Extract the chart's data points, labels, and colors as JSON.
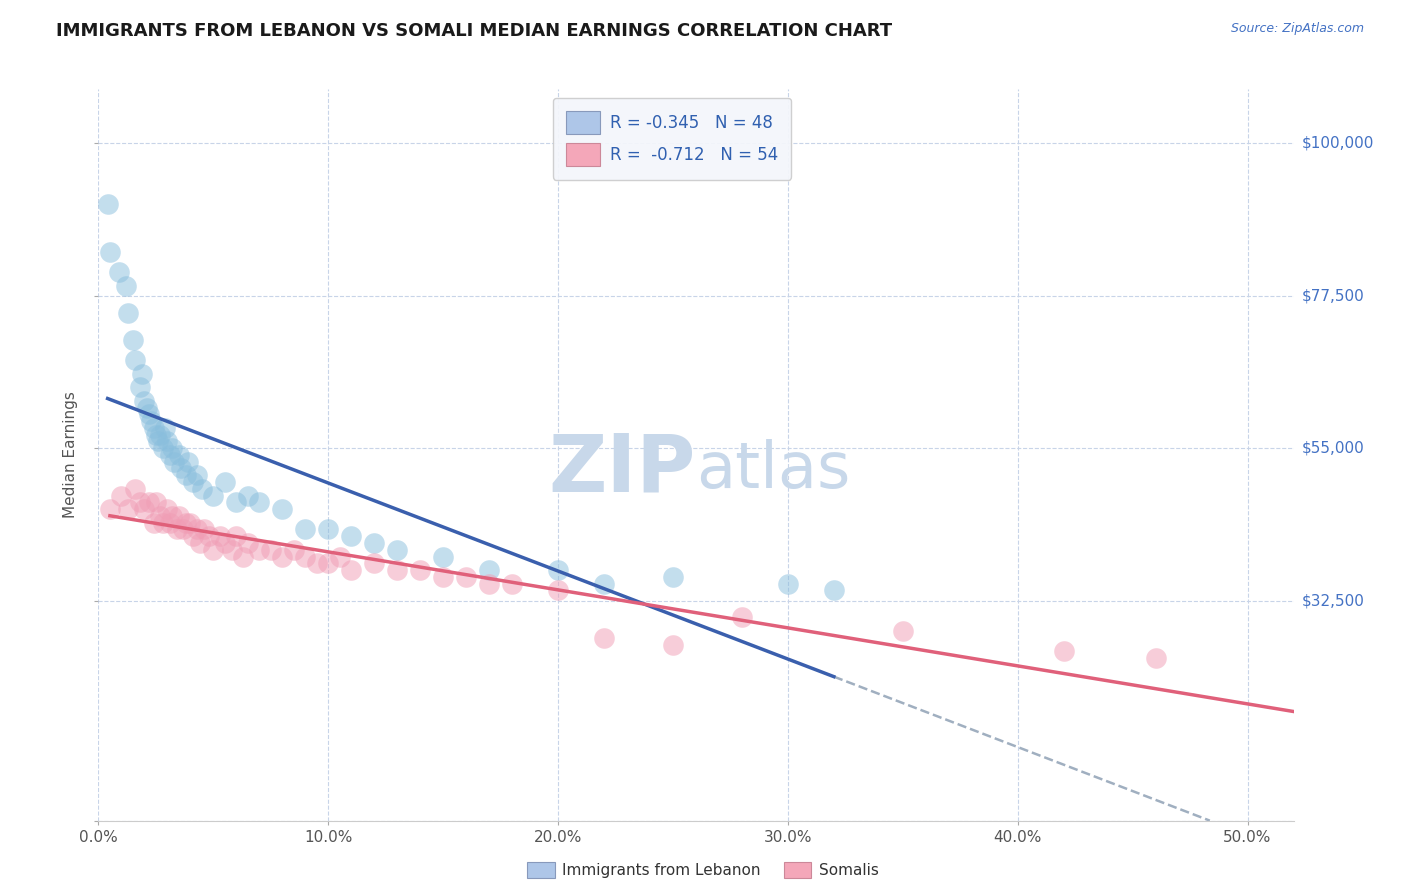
{
  "title": "IMMIGRANTS FROM LEBANON VS SOMALI MEDIAN EARNINGS CORRELATION CHART",
  "source": "Source: ZipAtlas.com",
  "ylabel": "Median Earnings",
  "xlim": [
    0.0,
    0.52
  ],
  "ylim": [
    0,
    108000
  ],
  "yticks": [
    0,
    32500,
    55000,
    77500,
    100000
  ],
  "ytick_labels": [
    "",
    "$32,500",
    "$55,000",
    "$77,500",
    "$100,000"
  ],
  "xtick_labels": [
    "0.0%",
    "10.0%",
    "20.0%",
    "30.0%",
    "40.0%",
    "50.0%"
  ],
  "xticks": [
    0.0,
    0.1,
    0.2,
    0.3,
    0.4,
    0.5
  ],
  "legend_label_leb": "R = -0.345   N = 48",
  "legend_label_som": "R =  -0.712   N = 54",
  "r_lebanon": -0.345,
  "n_lebanon": 48,
  "r_somali": -0.712,
  "n_somali": 54,
  "watermark_zip": "ZIP",
  "watermark_atlas": "atlas",
  "watermark_color": "#c8d8ea",
  "lebanon_color": "#89bedd",
  "somali_color": "#f09db5",
  "lebanon_line_color": "#3a5fad",
  "somali_line_color": "#e0607a",
  "dashed_line_color": "#a0afc0",
  "title_color": "#1a1a1a",
  "axis_label_color": "#555555",
  "tick_color_y": "#4472c4",
  "tick_color_x": "#555555",
  "background_color": "#ffffff",
  "grid_color": "#c8d4e8",
  "legend_box_color": "#aec6e8",
  "legend_box_som_color": "#f4a7b9",
  "bottom_legend_leb": "Immigrants from Lebanon",
  "bottom_legend_som": "Somalis",
  "lebanon_x": [
    0.004,
    0.005,
    0.009,
    0.012,
    0.013,
    0.015,
    0.016,
    0.018,
    0.019,
    0.02,
    0.021,
    0.022,
    0.023,
    0.024,
    0.025,
    0.026,
    0.027,
    0.028,
    0.029,
    0.03,
    0.031,
    0.032,
    0.033,
    0.035,
    0.036,
    0.038,
    0.039,
    0.041,
    0.043,
    0.045,
    0.05,
    0.055,
    0.06,
    0.065,
    0.07,
    0.08,
    0.09,
    0.1,
    0.11,
    0.12,
    0.13,
    0.15,
    0.17,
    0.2,
    0.22,
    0.25,
    0.3,
    0.32
  ],
  "lebanon_y": [
    91000,
    84000,
    81000,
    79000,
    75000,
    71000,
    68000,
    64000,
    66000,
    62000,
    61000,
    60000,
    59000,
    58000,
    57000,
    56000,
    57000,
    55000,
    58000,
    56000,
    54000,
    55000,
    53000,
    54000,
    52000,
    51000,
    53000,
    50000,
    51000,
    49000,
    48000,
    50000,
    47000,
    48000,
    47000,
    46000,
    43000,
    43000,
    42000,
    41000,
    40000,
    39000,
    37000,
    37000,
    35000,
    36000,
    35000,
    34000
  ],
  "somali_x": [
    0.005,
    0.01,
    0.013,
    0.016,
    0.018,
    0.02,
    0.022,
    0.024,
    0.025,
    0.027,
    0.028,
    0.03,
    0.031,
    0.032,
    0.034,
    0.035,
    0.037,
    0.038,
    0.04,
    0.041,
    0.043,
    0.044,
    0.046,
    0.048,
    0.05,
    0.053,
    0.055,
    0.058,
    0.06,
    0.063,
    0.065,
    0.07,
    0.075,
    0.08,
    0.085,
    0.09,
    0.095,
    0.1,
    0.105,
    0.11,
    0.12,
    0.13,
    0.14,
    0.15,
    0.16,
    0.17,
    0.18,
    0.2,
    0.22,
    0.25,
    0.28,
    0.35,
    0.42,
    0.46
  ],
  "somali_y": [
    46000,
    48000,
    46000,
    49000,
    47000,
    46000,
    47000,
    44000,
    47000,
    45000,
    44000,
    46000,
    44000,
    45000,
    43000,
    45000,
    43000,
    44000,
    44000,
    42000,
    43000,
    41000,
    43000,
    42000,
    40000,
    42000,
    41000,
    40000,
    42000,
    39000,
    41000,
    40000,
    40000,
    39000,
    40000,
    39000,
    38000,
    38000,
    39000,
    37000,
    38000,
    37000,
    37000,
    36000,
    36000,
    35000,
    35000,
    34000,
    27000,
    26000,
    30000,
    28000,
    25000,
    24000
  ]
}
